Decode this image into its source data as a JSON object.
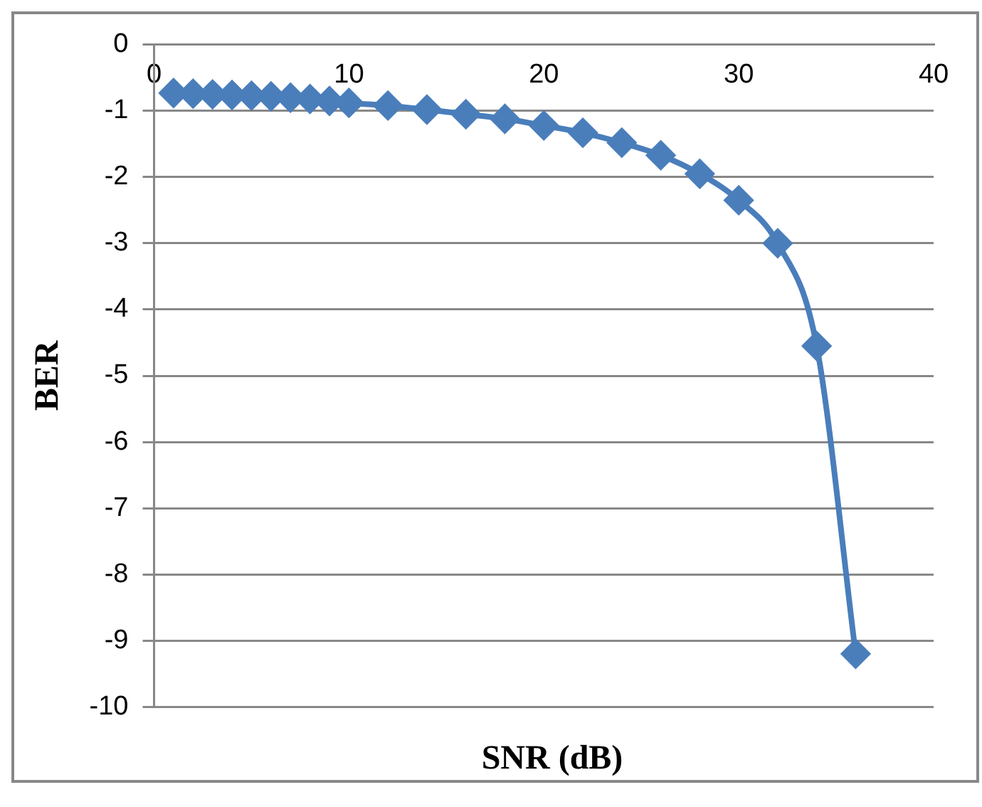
{
  "chart_data": {
    "type": "line",
    "xlabel": "SNR (dB)",
    "ylabel": "BER",
    "x": [
      1,
      2,
      3,
      4,
      5,
      6,
      7,
      8,
      9,
      10,
      12,
      14,
      16,
      18,
      20,
      22,
      24,
      26,
      28,
      30,
      32,
      34,
      36
    ],
    "series": [
      {
        "color": "#4a7ebb",
        "values": [
          -0.73,
          -0.74,
          -0.75,
          -0.76,
          -0.77,
          -0.78,
          -0.8,
          -0.82,
          -0.85,
          -0.88,
          -0.92,
          -0.98,
          -1.05,
          -1.12,
          -1.22,
          -1.33,
          -1.48,
          -1.67,
          -1.95,
          -2.35,
          -3.0,
          -4.55,
          -9.2
        ]
      }
    ],
    "xlim": [
      0,
      40
    ],
    "xticks": [
      0,
      10,
      20,
      30,
      40
    ],
    "ylim": [
      -10,
      0
    ],
    "yticks": [
      0,
      -1,
      -2,
      -3,
      -4,
      -5,
      -6,
      -7,
      -8,
      -9,
      -10
    ],
    "grid": "y",
    "marker": "diamond",
    "line_style": "solid",
    "legend": false
  }
}
